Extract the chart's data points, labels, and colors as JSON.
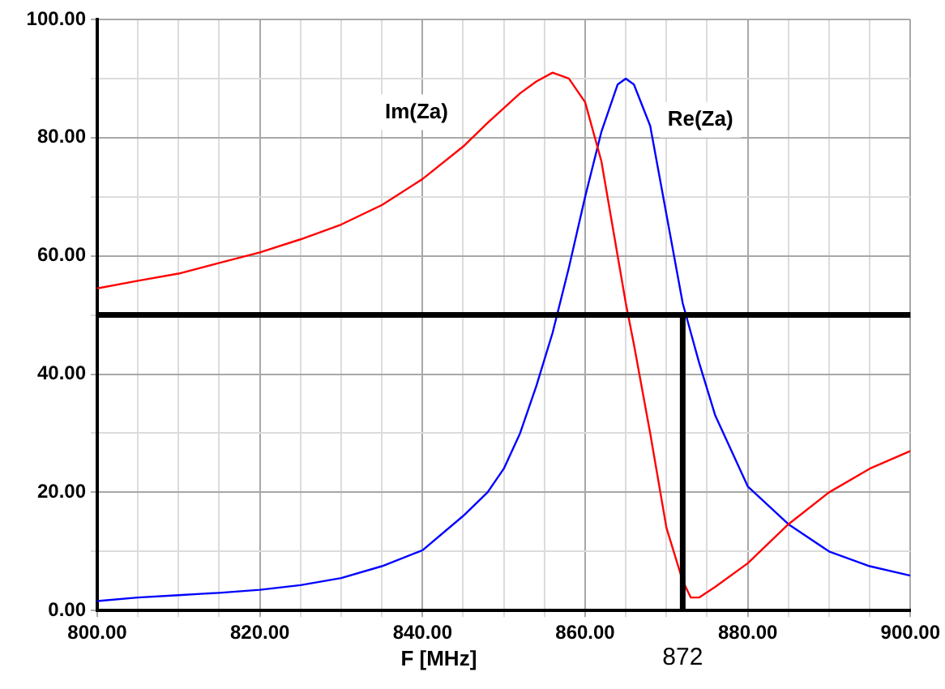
{
  "chart_data": {
    "type": "line",
    "xlabel": "F [MHz]",
    "x": [
      800,
      805,
      810,
      815,
      820,
      825,
      830,
      835,
      840,
      845,
      848,
      850,
      852,
      854,
      856,
      858,
      860,
      862,
      864,
      865,
      866,
      868,
      870,
      872,
      873,
      874,
      876,
      880,
      885,
      890,
      895,
      900
    ],
    "series": [
      {
        "name": "Im(Za)",
        "color": "#ff0000",
        "values": [
          54.5,
          55.8,
          57,
          58.8,
          60.6,
          62.8,
          65.3,
          68.6,
          73,
          78.5,
          82.5,
          85,
          87.5,
          89.5,
          91,
          90,
          86,
          76,
          60,
          52,
          45,
          30,
          14,
          5,
          2.2,
          2.2,
          4,
          8,
          14.6,
          20,
          24,
          27
        ]
      },
      {
        "name": "Re(Za)",
        "color": "#0000ff",
        "values": [
          1.6,
          2.2,
          2.6,
          3,
          3.5,
          4.3,
          5.5,
          7.5,
          10.2,
          16,
          20,
          24,
          30,
          38,
          47,
          58,
          70,
          81,
          89,
          90,
          89,
          82,
          67,
          52,
          47,
          42,
          33,
          21,
          14.6,
          10,
          7.5,
          5.9
        ]
      }
    ],
    "xlim": [
      800,
      900
    ],
    "xticks": [
      {
        "value": 800,
        "label": "800.00"
      },
      {
        "value": 805,
        "label": null
      },
      {
        "value": 810,
        "label": null
      },
      {
        "value": 815,
        "label": null
      },
      {
        "value": 820,
        "label": "820.00"
      },
      {
        "value": 825,
        "label": null
      },
      {
        "value": 830,
        "label": null
      },
      {
        "value": 835,
        "label": null
      },
      {
        "value": 840,
        "label": "840.00"
      },
      {
        "value": 845,
        "label": null
      },
      {
        "value": 850,
        "label": null
      },
      {
        "value": 855,
        "label": null
      },
      {
        "value": 860,
        "label": "860.00"
      },
      {
        "value": 865,
        "label": null
      },
      {
        "value": 870,
        "label": null
      },
      {
        "value": 875,
        "label": null
      },
      {
        "value": 880,
        "label": "880.00"
      },
      {
        "value": 885,
        "label": null
      },
      {
        "value": 890,
        "label": null
      },
      {
        "value": 895,
        "label": null
      },
      {
        "value": 900,
        "label": "900.00"
      }
    ],
    "ylim": [
      0,
      100
    ],
    "yticks": [
      {
        "value": 0,
        "label": "0.00"
      },
      {
        "value": 10,
        "label": null
      },
      {
        "value": 20,
        "label": "20.00"
      },
      {
        "value": 30,
        "label": null
      },
      {
        "value": 40,
        "label": "40.00"
      },
      {
        "value": 50,
        "label": null
      },
      {
        "value": 60,
        "label": "60.00"
      },
      {
        "value": 70,
        "label": null
      },
      {
        "value": 80,
        "label": "80.00"
      },
      {
        "value": 90,
        "label": null
      },
      {
        "value": 100,
        "label": "100.00"
      }
    ],
    "grid": true,
    "legend": false,
    "marker": "none",
    "line_style": "solid",
    "ref_lines": [
      {
        "axis": "y",
        "value": 50,
        "color": "#000000"
      },
      {
        "axis": "x",
        "value": 872,
        "label": "872",
        "color": "#000000"
      }
    ]
  }
}
